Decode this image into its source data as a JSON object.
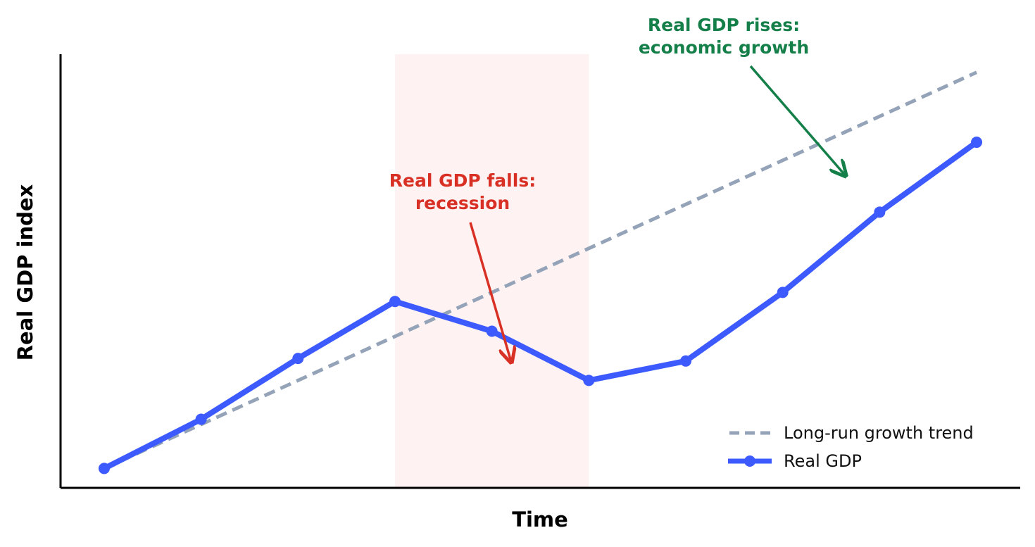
{
  "chart_data": {
    "type": "line",
    "xlabel": "Time",
    "ylabel": "Real GDP index",
    "x": [
      0,
      1,
      2,
      3,
      4,
      5,
      6,
      7,
      8,
      9
    ],
    "series": [
      {
        "name": "Long-run growth trend",
        "style": "dashed",
        "color": "#94a3b8",
        "values": [
          100,
          103.4,
          106.8,
          110.2,
          113.6,
          117.0,
          120.4,
          123.8,
          127.2,
          130.6
        ]
      },
      {
        "name": "Real GDP",
        "style": "solid-markers",
        "color": "#3d5afe",
        "values": [
          100,
          103.8,
          108.5,
          112.9,
          110.6,
          106.8,
          108.3,
          113.6,
          119.8,
          125.2
        ]
      }
    ],
    "shaded_region": {
      "x_start": 3,
      "x_end": 5,
      "color": "#fef2f2",
      "label": "recession"
    },
    "xlim": [
      -0.45,
      9.45
    ],
    "ylim": [
      98.5,
      132
    ],
    "ticks": "none",
    "grid": false,
    "legend": {
      "position": "bottom-right"
    },
    "annotations": [
      {
        "line1": "Real GDP falls:",
        "line2": "recession",
        "color": "#d93025",
        "arrow_to_x": 4.2,
        "arrow_to_y": 108.2
      },
      {
        "line1": "Real GDP rises:",
        "line2": "economic growth",
        "color": "#157f4a",
        "arrow_to_x": 7.65,
        "arrow_to_y": 122.6
      }
    ]
  }
}
